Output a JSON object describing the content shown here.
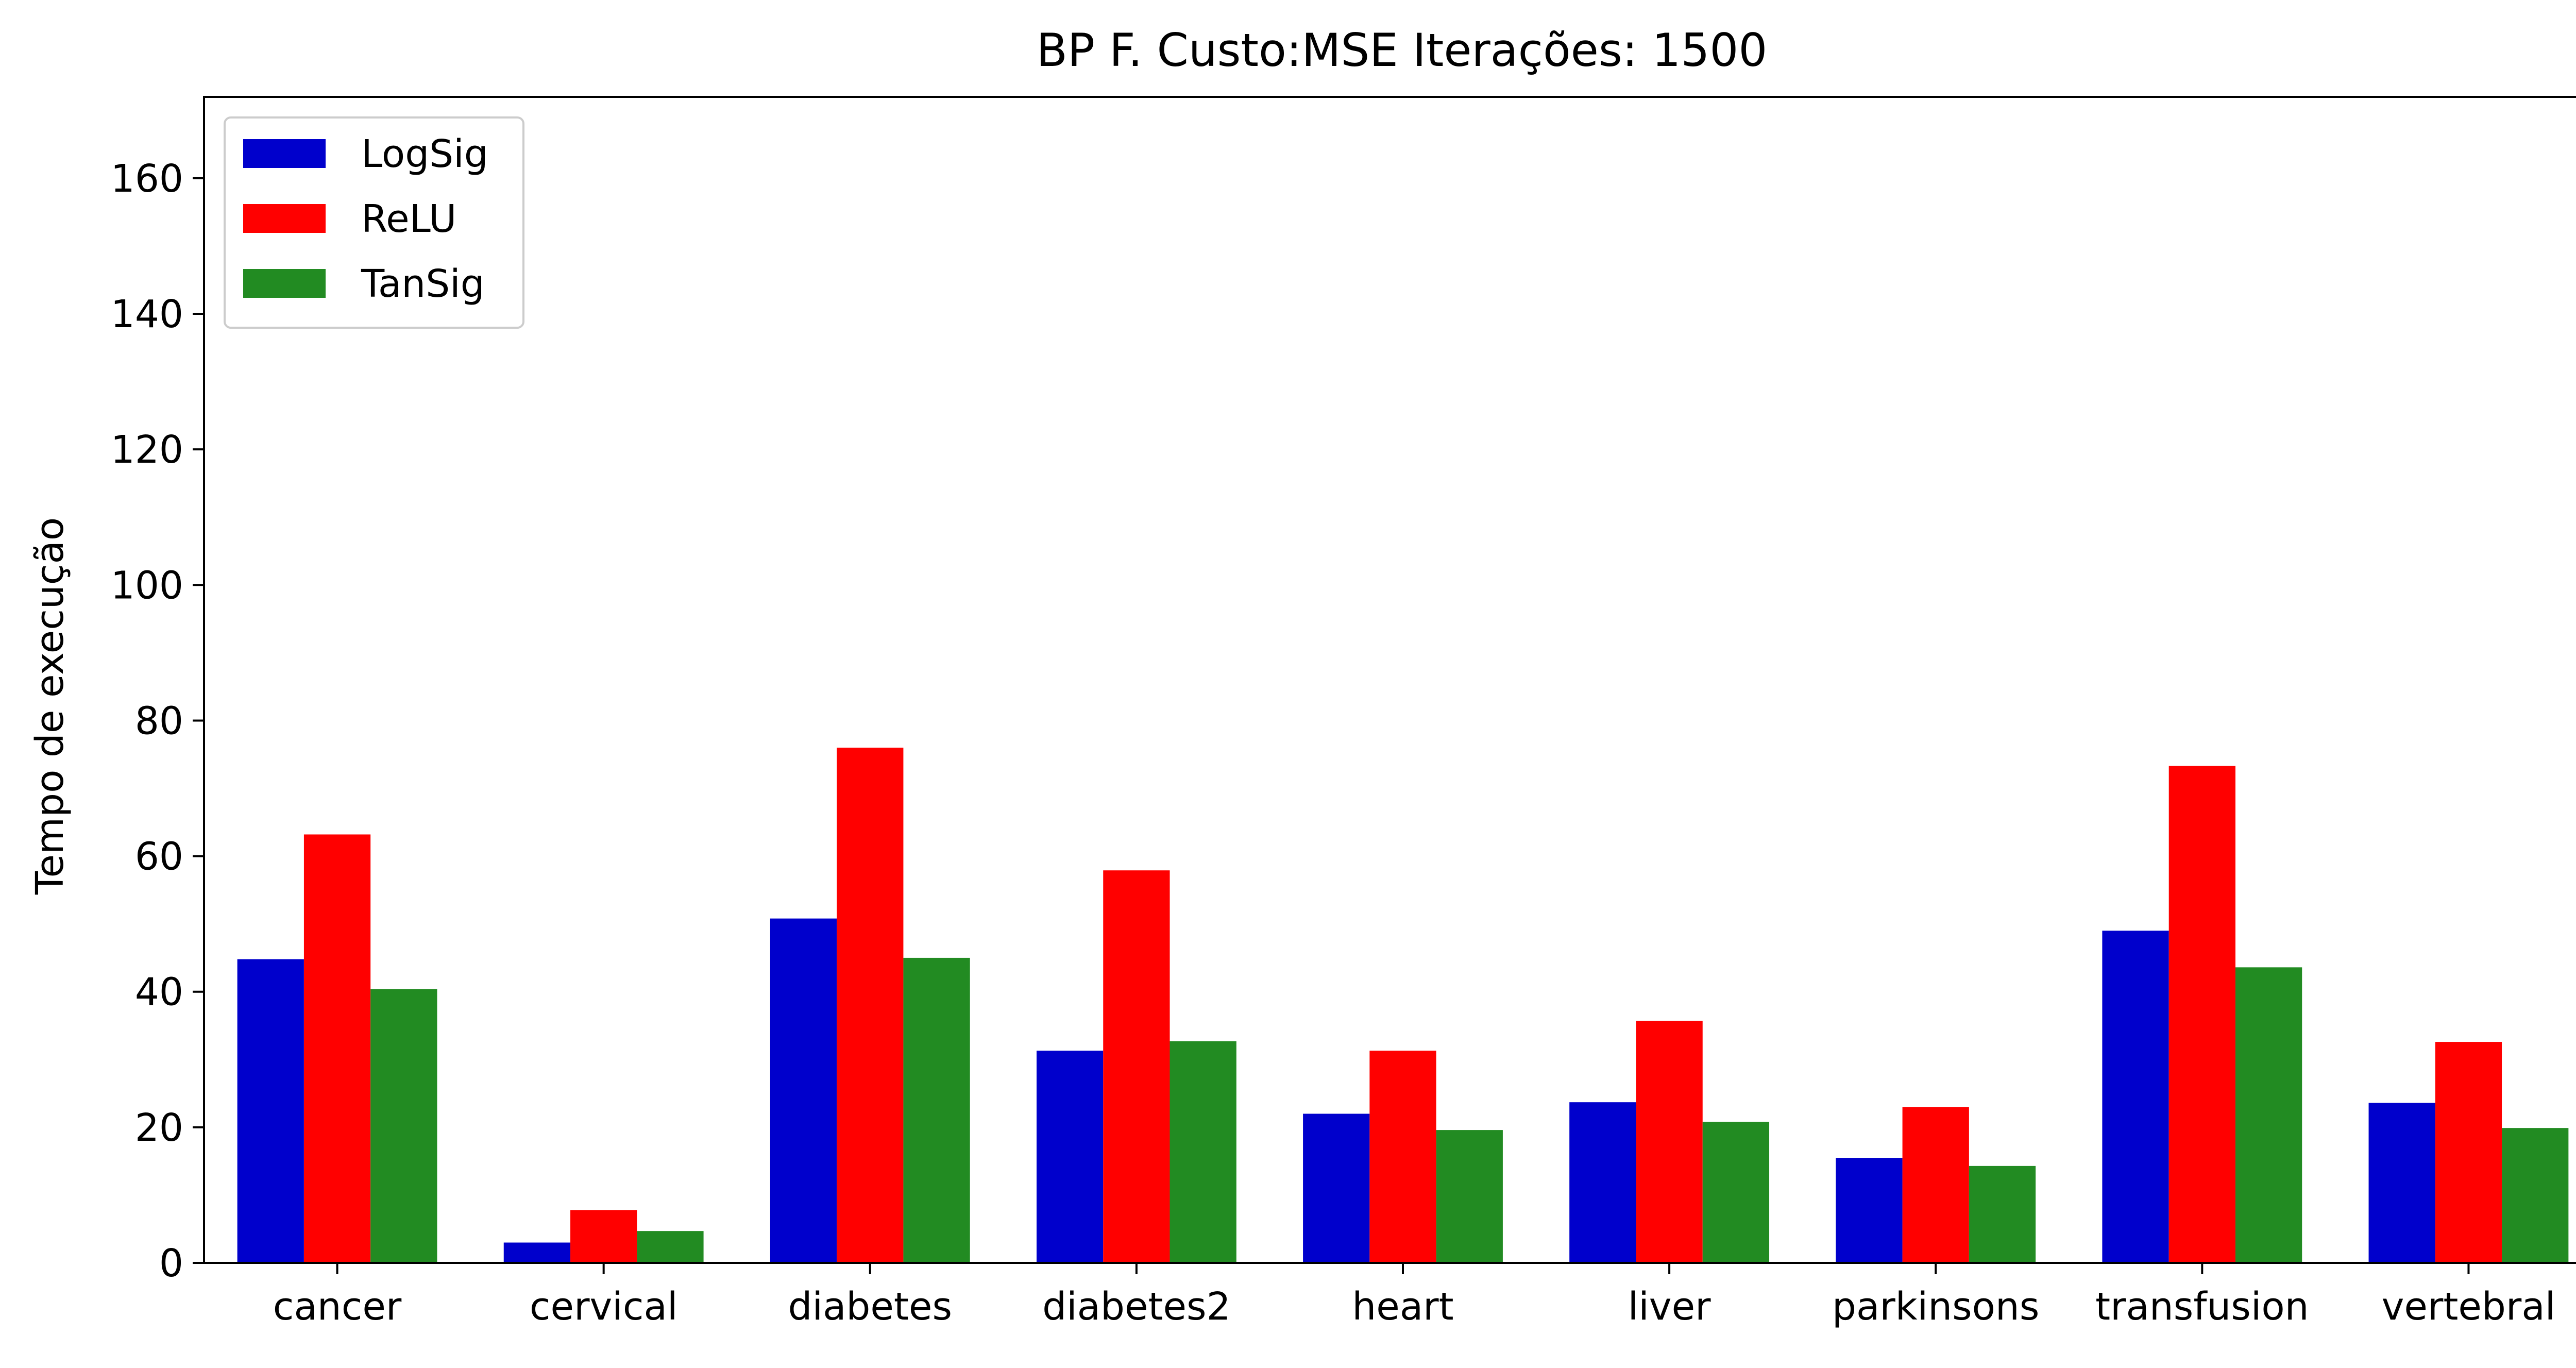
{
  "chart_data": {
    "type": "bar",
    "title": "BP F. Custo:MSE Iterações: 1500",
    "xlabel": "",
    "ylabel": "Tempo de execução",
    "ylim": [
      0,
      172
    ],
    "yticks": [
      0,
      20,
      40,
      60,
      80,
      100,
      120,
      140,
      160
    ],
    "grid": false,
    "legend_position": "top-left",
    "categories": [
      "cancer",
      "cervical",
      "diabetes",
      "diabetes2",
      "heart",
      "liver",
      "parkinsons",
      "transfusion",
      "vertebral"
    ],
    "series": [
      {
        "name": "LogSig",
        "color": "#0000cc",
        "values": [
          44.8,
          3.0,
          50.8,
          31.3,
          22.0,
          23.7,
          15.5,
          49.0,
          23.6
        ]
      },
      {
        "name": "ReLU",
        "color": "#ff0000",
        "values": [
          63.2,
          7.8,
          76.0,
          57.9,
          31.3,
          35.7,
          23.0,
          73.3,
          32.6
        ]
      },
      {
        "name": "TanSig",
        "color": "#228b22",
        "values": [
          40.4,
          4.7,
          45.0,
          32.7,
          19.6,
          20.8,
          14.3,
          43.6,
          19.9
        ]
      }
    ]
  }
}
